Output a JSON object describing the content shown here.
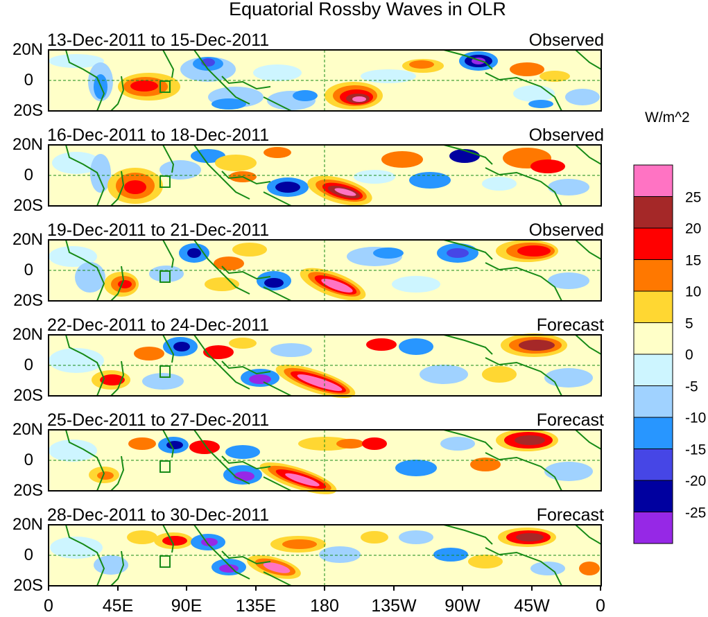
{
  "title": "Equatorial Rossby Waves in OLR",
  "units": "W/m^2",
  "lat_labels": [
    "20N",
    "0",
    "20S"
  ],
  "lon_labels": [
    "0",
    "45E",
    "90E",
    "135E",
    "180",
    "135W",
    "90W",
    "45W",
    "0"
  ],
  "panels": [
    {
      "date": "13-Dec-2011 to 15-Dec-2011",
      "status": "Observed"
    },
    {
      "date": "16-Dec-2011 to 18-Dec-2011",
      "status": "Observed"
    },
    {
      "date": "19-Dec-2011 to 21-Dec-2011",
      "status": "Observed"
    },
    {
      "date": "22-Dec-2011 to 24-Dec-2011",
      "status": "Forecast"
    },
    {
      "date": "25-Dec-2011 to 27-Dec-2011",
      "status": "Forecast"
    },
    {
      "date": "28-Dec-2011 to 30-Dec-2011",
      "status": "Forecast"
    }
  ],
  "colorbar": {
    "labels": [
      "25",
      "20",
      "15",
      "10",
      "5",
      "0",
      "-5",
      "-10",
      "-15",
      "-20",
      "-25"
    ],
    "colors": [
      "#ff73c3",
      "#a52828",
      "#ff0000",
      "#ff7800",
      "#ffd732",
      "#ffffc8",
      "#cdf5ff",
      "#a0d2ff",
      "#2896ff",
      "#4646e6",
      "#0000a0",
      "#9628e6"
    ]
  },
  "palette": {
    "coast": "#168a16",
    "axis": "#000000",
    "equator": "#168a16"
  }
}
